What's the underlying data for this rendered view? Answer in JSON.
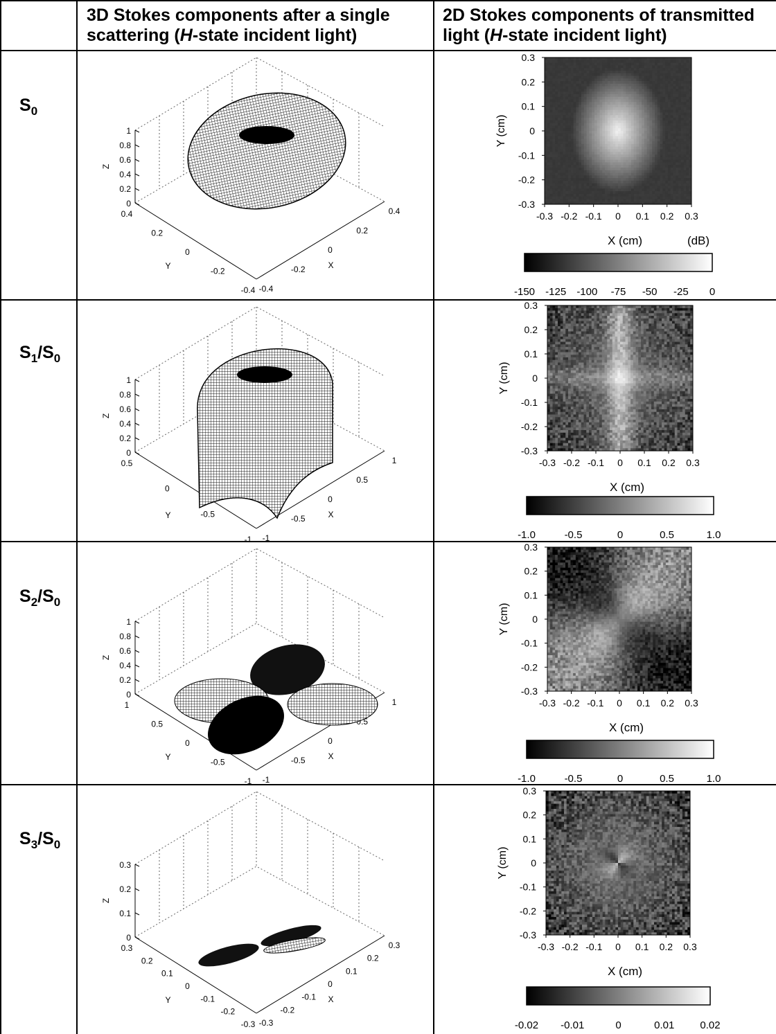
{
  "headers": {
    "col1_line1": "3D Stokes components after a single",
    "col1_line2a": "scattering (",
    "col1_italic": "H",
    "col1_line2b": "-state incident light)",
    "col2_line1": "2D Stokes components of transmitted",
    "col2_line2a": "light (",
    "col2_italic": "H",
    "col2_line2b": "-state incident light)"
  },
  "rows": [
    {
      "label_main": "S",
      "label_sub": "0",
      "label_slash": "",
      "label_sub2": "",
      "plot3d": {
        "shape": "ellipsoid",
        "zlabel": "Z",
        "ylabel": "Y",
        "xlabel": "X",
        "zticks": [
          "1",
          "0.8",
          "0.6",
          "0.4",
          "0.2",
          "0"
        ],
        "yticks": [
          "0.4",
          "0.2",
          "0",
          "-0.2",
          "-0.4"
        ],
        "xticks": [
          "-0.4",
          "-0.2",
          "0",
          "0.2",
          "0.4"
        ]
      },
      "map2d": {
        "pattern": "center",
        "xlabel": "X (cm)",
        "ylabel": "Y (cm)",
        "unit": "(dB)",
        "ticks": [
          "0.3",
          "0.2",
          "0.1",
          "0",
          "-0.1",
          "-0.2",
          "-0.3"
        ],
        "xticks": [
          "-0.3",
          "-0.2",
          "-0.1",
          "0",
          "0.1",
          "0.2",
          "0.3"
        ],
        "colorbar_ticks": [
          "-150",
          "-125",
          "-100",
          "-75",
          "-50",
          "-25",
          "0"
        ]
      }
    },
    {
      "label_main": "S",
      "label_sub": "1",
      "label_slash": "/S",
      "label_sub2": "0",
      "plot3d": {
        "shape": "dome",
        "zlabel": "Z",
        "ylabel": "Y",
        "xlabel": "X",
        "zticks": [
          "1",
          "0.8",
          "0.6",
          "0.4",
          "0.2",
          "0"
        ],
        "yticks": [
          "0.5",
          "0",
          "-0.5",
          "-1"
        ],
        "xticks": [
          "-1",
          "-0.5",
          "0",
          "0.5",
          "1"
        ]
      },
      "map2d": {
        "pattern": "cross",
        "xlabel": "X (cm)",
        "ylabel": "Y (cm)",
        "unit": "",
        "ticks": [
          "0.3",
          "0.2",
          "0.1",
          "0",
          "-0.1",
          "-0.2",
          "-0.3"
        ],
        "xticks": [
          "-0.3",
          "-0.2",
          "-0.1",
          "0",
          "0.1",
          "0.2",
          "0.3"
        ],
        "colorbar_ticks": [
          "-1.0",
          "-0.5",
          "0",
          "0.5",
          "1.0"
        ]
      }
    },
    {
      "label_main": "S",
      "label_sub": "2",
      "label_slash": "/S",
      "label_sub2": "0",
      "plot3d": {
        "shape": "clover",
        "zlabel": "Z",
        "ylabel": "Y",
        "xlabel": "X",
        "zticks": [
          "1",
          "0.8",
          "0.6",
          "0.4",
          "0.2",
          "0"
        ],
        "yticks": [
          "1",
          "0.5",
          "0",
          "-0.5",
          "-1"
        ],
        "xticks": [
          "-1",
          "-0.5",
          "0",
          "0.5",
          "1"
        ]
      },
      "map2d": {
        "pattern": "diag",
        "xlabel": "X (cm)",
        "ylabel": "Y (cm)",
        "unit": "",
        "ticks": [
          "0.3",
          "0.2",
          "0.1",
          "0",
          "-0.1",
          "-0.2",
          "-0.3"
        ],
        "xticks": [
          "-0.3",
          "-0.2",
          "-0.1",
          "0",
          "0.1",
          "0.2",
          "0.3"
        ],
        "colorbar_ticks": [
          "-1.0",
          "-0.5",
          "0",
          "0.5",
          "1.0"
        ]
      }
    },
    {
      "label_main": "S",
      "label_sub": "3",
      "label_slash": "/S",
      "label_sub2": "0",
      "plot3d": {
        "shape": "thin",
        "zlabel": "Z",
        "ylabel": "Y",
        "xlabel": "X",
        "zticks": [
          "0.3",
          "0.2",
          "0.1",
          "0"
        ],
        "yticks": [
          "0.3",
          "0.2",
          "0.1",
          "0",
          "-0.1",
          "-0.2",
          "-0.3"
        ],
        "xticks": [
          "-0.3",
          "-0.2",
          "-0.1",
          "0",
          "0.1",
          "0.2",
          "0.3"
        ]
      },
      "map2d": {
        "pattern": "quad",
        "xlabel": "X (cm)",
        "ylabel": "Y (cm)",
        "unit": "",
        "ticks": [
          "0.3",
          "0.2",
          "0.1",
          "0",
          "-0.1",
          "-0.2",
          "-0.3"
        ],
        "xticks": [
          "-0.3",
          "-0.2",
          "-0.1",
          "0",
          "0.1",
          "0.2",
          "0.3"
        ],
        "colorbar_ticks": [
          "-0.02",
          "-0.01",
          "0",
          "0.01",
          "0.02"
        ]
      }
    }
  ]
}
